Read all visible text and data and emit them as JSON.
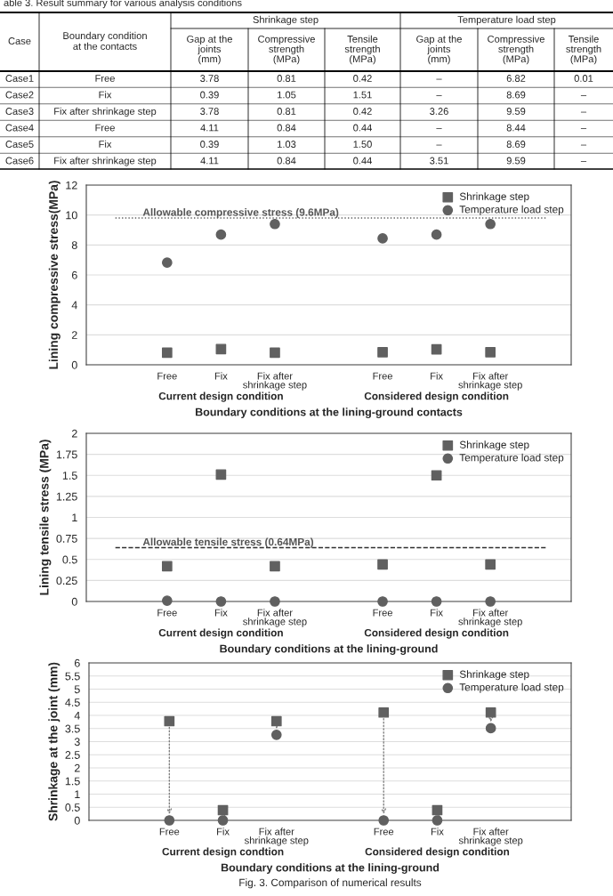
{
  "chart_data": [
    {
      "type": "other",
      "annotations": [
        "able 3. Result summary for various analysis conditions",
        "Case",
        "Boundary condition\nat the contacts",
        "Shrinkage step",
        "Temperature load step",
        "Gap at the\njoints\n(mm)",
        "Compressive\nstrength\n(MPa)",
        "Tensile\nstrength\n(MPa)",
        "Gap at the\njoints\n(mm)",
        "Compressive\nstrength\n(MPa)",
        "Tensile\nstrength\n(MPa)",
        "Case1",
        "Free",
        "3.78",
        "0.81",
        "0.42",
        "–",
        "6.82",
        "0.01",
        "Case2",
        "Fix",
        "0.39",
        "1.05",
        "1.51",
        "–",
        "8.69",
        "–",
        "Case3",
        "Fix after shrinkage step",
        "3.78",
        "0.81",
        "0.42",
        "3.26",
        "9.59",
        "–",
        "Case4",
        "Free",
        "4.11",
        "0.84",
        "0.44",
        "–",
        "8.44",
        "–",
        "Case5",
        "Fix",
        "0.39",
        "1.03",
        "1.50",
        "–",
        "8.69",
        "–",
        "Case6",
        "Fix after shrinkage step",
        "4.11",
        "0.84",
        "0.44",
        "3.51",
        "9.59",
        "–"
      ]
    },
    {
      "type": "scatter",
      "xlabel": "Boundary conditions at the lining-ground contacts",
      "ylabel": "Lining compressive stress(MPa)",
      "categories": [
        null,
        "Free",
        "Fix",
        "Fix after\nshrinkage step",
        null,
        "Free",
        "Fix",
        "Fix after\nshrinkage step",
        null
      ],
      "series": [
        {
          "name": "Shrinkage step",
          "color": "#606060",
          "marker": "square",
          "values": [
            null,
            0.81,
            1.05,
            0.81,
            null,
            0.84,
            1.03,
            0.84,
            null
          ]
        },
        {
          "name": "Temperature load step",
          "color": "#606060",
          "marker": "circle",
          "values": [
            null,
            6.82,
            8.69,
            9.4,
            null,
            8.44,
            8.69,
            9.4,
            null
          ]
        }
      ],
      "ylim": [
        0,
        12
      ],
      "yticks": [
        0,
        2,
        4,
        6,
        8,
        10,
        12
      ],
      "grid": "y",
      "legend": "top right",
      "ref_lines": [
        {
          "axis": "y",
          "value": 9.8,
          "label": "Allowable compressive stress (9.6MPa)",
          "color": "#606060",
          "line_style": "dotted"
        }
      ],
      "annotations": [
        "Current design condition",
        "Considered design condition"
      ]
    },
    {
      "type": "scatter",
      "xlabel": "Boundary conditions at the lining-ground",
      "ylabel": "Lining tensile stress (MPa)",
      "categories": [
        null,
        "Free",
        "Fix",
        "Fix after\nshrinkage step",
        null,
        "Free",
        "Fix",
        "Fix after\nshrinkage step",
        null
      ],
      "series": [
        {
          "name": "Shrinkage step",
          "color": "#606060",
          "marker": "square",
          "values": [
            null,
            0.42,
            1.51,
            0.42,
            null,
            0.44,
            1.5,
            0.44,
            null
          ]
        },
        {
          "name": "Temperature load step",
          "color": "#606060",
          "marker": "circle",
          "values": [
            null,
            0.01,
            0,
            0,
            null,
            0,
            0,
            0,
            null
          ]
        }
      ],
      "ylim": [
        0,
        2
      ],
      "yticks": [
        0,
        0.25,
        0.5,
        0.75,
        1,
        1.25,
        1.5,
        1.75,
        2
      ],
      "grid": "y",
      "legend": "top right",
      "ref_lines": [
        {
          "axis": "y",
          "value": 0.64,
          "label": "Allowable tensile stress (0.64MPa)",
          "color": "#303030",
          "line_style": "dashed"
        }
      ],
      "annotations": [
        "Current design condition",
        "Considered design condition"
      ]
    },
    {
      "type": "scatter",
      "xlabel": "Boundary conditions at the lining-ground",
      "ylabel": "Shrinkage at the joint (mm)",
      "categories": [
        null,
        "Free",
        "Fix",
        "Fix after\nshrinkage step",
        null,
        "Free",
        "Fix",
        "Fix after\nshrinkage step",
        null
      ],
      "series": [
        {
          "name": "Shrinkage step",
          "color": "#606060",
          "marker": "square",
          "values": [
            null,
            3.78,
            0.39,
            3.78,
            null,
            4.11,
            0.39,
            4.11,
            null
          ]
        },
        {
          "name": "Temperature load step",
          "color": "#606060",
          "marker": "circle",
          "values": [
            null,
            0,
            0,
            3.26,
            null,
            0,
            0,
            3.51,
            null
          ]
        }
      ],
      "ylim": [
        0,
        6
      ],
      "yticks": [
        0,
        0.5,
        1,
        1.5,
        2,
        2.5,
        3,
        3.5,
        4,
        4.5,
        5,
        5.5,
        6
      ],
      "grid": "y",
      "legend": "top right",
      "annotations": [
        "Current design condtion",
        "Considered design condition",
        "Fig. 3. Comparison of numerical results"
      ]
    }
  ]
}
